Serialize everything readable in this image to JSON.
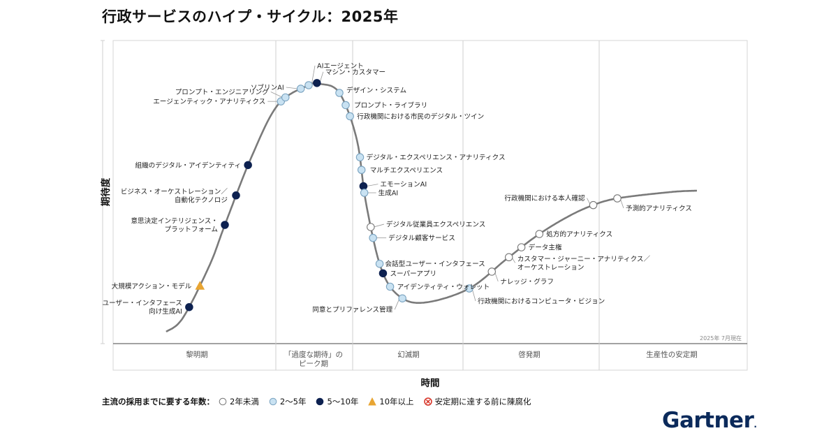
{
  "title": "行政サービスのハイプ・サイクル：2025年",
  "brand": {
    "logo_text": "Gartner",
    "logo_mark": "."
  },
  "chart_data": {
    "type": "hype-cycle",
    "xlabel": "時間",
    "ylabel": "期待度",
    "as_of": "2025年 7月現在",
    "phases": [
      "黎明期",
      "「過度な期待」の\nピーク期",
      "幻滅期",
      "啓発期",
      "生産性の安定期"
    ],
    "legend": {
      "title": "主流の採用までに要する年数：",
      "items": [
        {
          "key": "lt2",
          "label": "2年未満",
          "fill": "#ffffff",
          "stroke": "#777777"
        },
        {
          "key": "y2to5",
          "label": "2〜5年",
          "fill": "#c9e2f2",
          "stroke": "#7aa3c0"
        },
        {
          "key": "y5to10",
          "label": "5〜10年",
          "fill": "#0d2150",
          "stroke": "#0d2150"
        },
        {
          "key": "gt10",
          "label": "10年以上",
          "fill": "#e8a533",
          "stroke": "#e8a533"
        },
        {
          "key": "obsolete",
          "label": "安定期に達する前に陳腐化",
          "fill": "#ffffff",
          "stroke": "#d62d20"
        }
      ]
    },
    "technologies": [
      {
        "label": "ユーザー・インタフェース\n向け生成AI",
        "t": 0.05,
        "years": "y5to10"
      },
      {
        "label": "大規模アクション・モデル",
        "t": 0.065,
        "years": "gt10"
      },
      {
        "label": "意思決定インテリジェンス・\nプラットフォーム",
        "t": 0.12,
        "years": "y5to10"
      },
      {
        "label": "ビジネス・オーケストレーション／\n自動化テクノロジ",
        "t": 0.138,
        "years": "y5to10"
      },
      {
        "label": "組織のデジタル・アイデンティティ",
        "t": 0.155,
        "years": "y5to10"
      },
      {
        "label": "エージェンティック・アナリティクス",
        "t": 0.205,
        "years": "y2to5"
      },
      {
        "label": "プロンプト・エンジニアリング",
        "t": 0.212,
        "years": "y2to5"
      },
      {
        "label": "ソブリンAI",
        "t": 0.235,
        "years": "y2to5"
      },
      {
        "label": "AIエージェント",
        "t": 0.25,
        "years": "y2to5"
      },
      {
        "label": "マシン・カスタマー",
        "t": 0.265,
        "years": "y5to10"
      },
      {
        "label": "デザイン・システム",
        "t": 0.3,
        "years": "y2to5"
      },
      {
        "label": "プロンプト・ライブラリ",
        "t": 0.31,
        "years": "y2to5"
      },
      {
        "label": "行政機関における市民のデジタル・ツイン",
        "t": 0.317,
        "years": "y2to5"
      },
      {
        "label": "デジタル・エクスペリエンス・アナリティクス",
        "t": 0.336,
        "years": "y2to5"
      },
      {
        "label": "マルチエクスペリエンス",
        "t": 0.34,
        "years": "y2to5"
      },
      {
        "label": "エモーションAI",
        "t": 0.345,
        "years": "y5to10"
      },
      {
        "label": "生成AI",
        "t": 0.347,
        "years": "y2to5"
      },
      {
        "label": "デジタル従業員エクスペリエンス",
        "t": 0.357,
        "years": "lt2"
      },
      {
        "label": "デジタル顧客サービス",
        "t": 0.36,
        "years": "y2to5"
      },
      {
        "label": "会話型ユーザー・インタフェース",
        "t": 0.368,
        "years": "y2to5"
      },
      {
        "label": "スーパーアプリ",
        "t": 0.373,
        "years": "y5to10"
      },
      {
        "label": "アイデンティティ・ウォレット",
        "t": 0.385,
        "years": "y2to5"
      },
      {
        "label": "同意とプリファレンス管理",
        "t": 0.405,
        "years": "y2to5"
      },
      {
        "label": "行政機関におけるコンピュータ・ビジョン",
        "t": 0.5,
        "years": "y2to5"
      },
      {
        "label": "ナレッジ・グラフ",
        "t": 0.53,
        "years": "lt2"
      },
      {
        "label": "カスタマー・ジャーニー・アナリティクス／\nオーケストレーション",
        "t": 0.555,
        "years": "lt2"
      },
      {
        "label": "データ主権",
        "t": 0.575,
        "years": "lt2"
      },
      {
        "label": "処方的アナリティクス",
        "t": 0.605,
        "years": "lt2"
      },
      {
        "label": "行政機関における本人確認",
        "t": 0.705,
        "years": "lt2"
      },
      {
        "label": "予測的アナリティクス",
        "t": 0.75,
        "years": "lt2"
      }
    ]
  }
}
